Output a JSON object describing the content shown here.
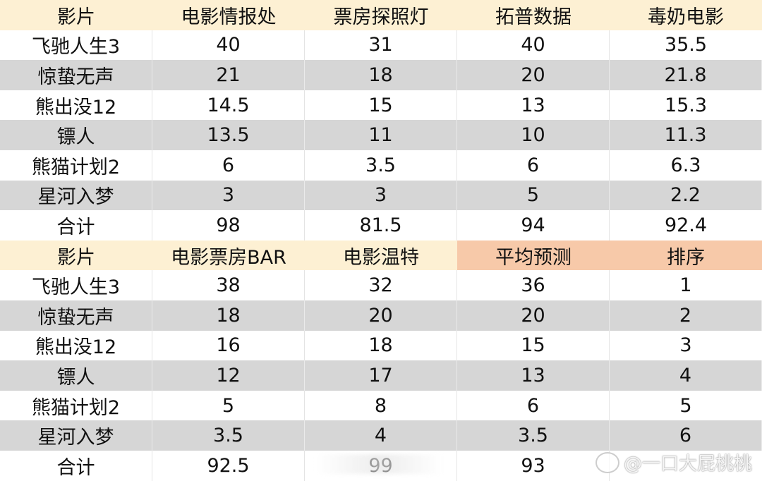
{
  "tables": [
    {
      "headers": [
        "影片",
        "电影情报处",
        "票房探照灯",
        "拓普数据",
        "毒奶电影"
      ],
      "highlighted_headers": [],
      "rows": [
        [
          "飞驰人生3",
          "40",
          "31",
          "40",
          "35.5"
        ],
        [
          "惊蛰无声",
          "21",
          "18",
          "20",
          "21.8"
        ],
        [
          "熊出没12",
          "14.5",
          "15",
          "13",
          "15.3"
        ],
        [
          "镖人",
          "13.5",
          "11",
          "10",
          "11.3"
        ],
        [
          "熊猫计划2",
          "6",
          "3.5",
          "6",
          "6.3"
        ],
        [
          "星河入梦",
          "3",
          "3",
          "5",
          "2.2"
        ],
        [
          "合计",
          "98",
          "81.5",
          "94",
          "92.4"
        ]
      ]
    },
    {
      "headers": [
        "影片",
        "电影票房BAR",
        "电影温特",
        "平均预测",
        "排序"
      ],
      "highlighted_headers": [
        3,
        4
      ],
      "rows": [
        [
          "飞驰人生3",
          "38",
          "32",
          "36",
          "1"
        ],
        [
          "惊蛰无声",
          "18",
          "20",
          "20",
          "2"
        ],
        [
          "熊出没12",
          "16",
          "18",
          "15",
          "3"
        ],
        [
          "镖人",
          "12",
          "17",
          "13",
          "4"
        ],
        [
          "熊猫计划2",
          "5",
          "8",
          "6",
          "5"
        ],
        [
          "星河入梦",
          "3.5",
          "4",
          "3.5",
          "6"
        ],
        [
          "合计",
          "92.5",
          "99",
          "93",
          ""
        ]
      ]
    }
  ],
  "colors": {
    "header": "#fdf0d3",
    "header_highlight": "#f7c9a9",
    "stripe": "#d6d6d6"
  },
  "watermark": {
    "text": "@一口大屁桃桃",
    "icon": "weibo-logo-icon"
  }
}
